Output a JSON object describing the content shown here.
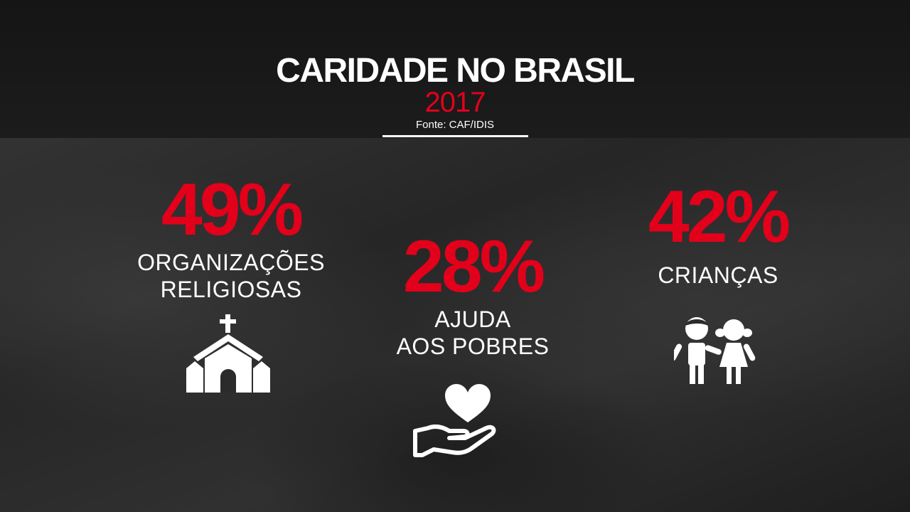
{
  "header": {
    "title": "CARIDADE NO BRASIL",
    "year": "2017",
    "source": "Fonte: CAF/IDIS"
  },
  "stats": [
    {
      "value": "49%",
      "label_line1": "ORGANIZAÇÕES",
      "label_line2": "RELIGIOSAS",
      "icon": "church-icon"
    },
    {
      "value": "28%",
      "label_line1": "AJUDA",
      "label_line2": "AOS POBRES",
      "icon": "heart-in-hand-icon"
    },
    {
      "value": "42%",
      "label_line1": "CRIANÇAS",
      "icon": "children-icon"
    }
  ],
  "colors": {
    "accent": "#e3001b",
    "text": "#ffffff",
    "background": "#2b2b2b"
  }
}
